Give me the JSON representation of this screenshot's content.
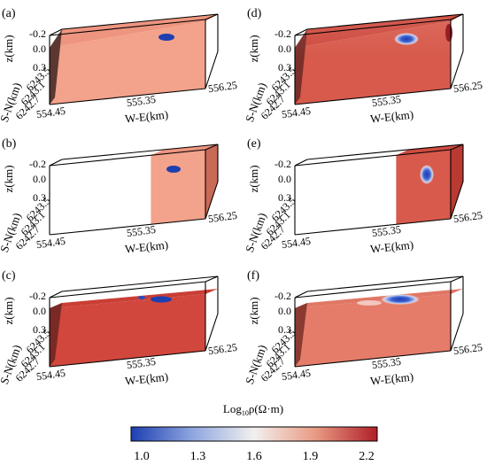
{
  "figure": {
    "panels": [
      {
        "label": "(a)",
        "block": "tilted"
      },
      {
        "label": "(d)",
        "block": "tilted"
      },
      {
        "label": "(b)",
        "block": "partial"
      },
      {
        "label": "(e)",
        "block": "partial"
      },
      {
        "label": "(c)",
        "block": "full"
      },
      {
        "label": "(f)",
        "block": "full"
      }
    ],
    "axes": {
      "z_label": "z(km)",
      "z_ticks": [
        "-0.2",
        "0.0",
        "0.3"
      ],
      "sn_label": "S-N(km)",
      "sn_ticks": [
        "6243.5",
        "6243.1",
        "6242.7"
      ],
      "we_label": "W-E(km)",
      "we_ticks": [
        "554.45",
        "555.35",
        "556.25"
      ]
    },
    "colorbar": {
      "title_prefix": "Log",
      "title_sub": "10",
      "title_suffix": "ρ(Ω·m)",
      "ticks": [
        "1.0",
        "1.3",
        "1.6",
        "1.9",
        "2.2"
      ],
      "colors": [
        "#1e3fb0",
        "#8fa6e0",
        "#f2f0ee",
        "#e89a84",
        "#b01f28"
      ]
    }
  }
}
